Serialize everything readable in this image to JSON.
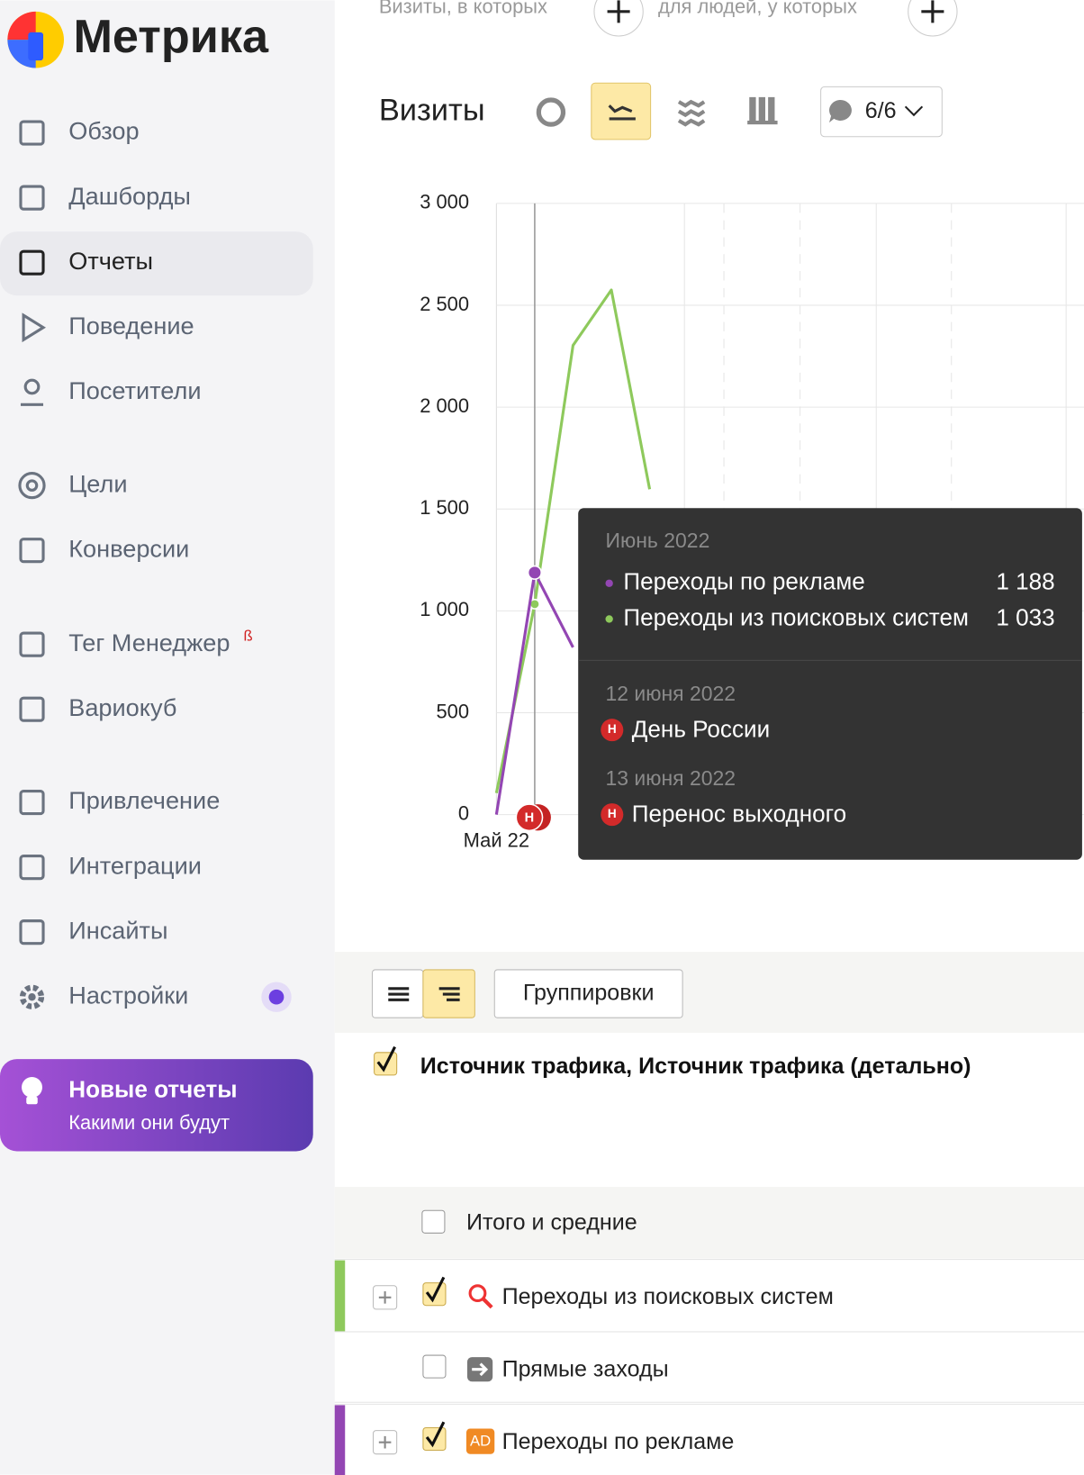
{
  "logo": "Метрика",
  "nav": [
    "Обзор",
    "Дашборды",
    "Отчеты",
    "Поведение",
    "Посетители",
    "Цели",
    "Конверсии",
    "Тег Менеджер",
    "Вариокуб",
    "Привлечение",
    "Интеграции",
    "Инсайты",
    "Настройки"
  ],
  "nav_badge": "ß",
  "promo": {
    "title": "Новые отчеты",
    "subtitle": "Какими они будут"
  },
  "filters": [
    "Визиты, в которых",
    "для людей, у которых"
  ],
  "toolbar": {
    "title": "Визиты",
    "notes": "6/6"
  },
  "chart_data": {
    "type": "line",
    "categories": [
      "Май 22",
      null,
      null,
      null,
      null
    ],
    "series": [
      {
        "name": "Переходы по рекламе",
        "color": "#9346b3",
        "values": [
          0,
          1188,
          821,
          null,
          null
        ]
      },
      {
        "name": "Переходы из поисковых систем",
        "color": "#8ec95c",
        "values": [
          106,
          1033,
          2303,
          2575,
          1597
        ]
      }
    ],
    "ylim": [
      0,
      3000
    ],
    "yticks": [
      0,
      500,
      {
        "value": 1000,
        "label": "1 000"
      },
      {
        "value": 1500,
        "label": "1 500"
      },
      {
        "value": 2000,
        "label": "2 000"
      },
      {
        "value": 2500,
        "label": "2 500"
      },
      {
        "value": 3000,
        "label": "3 000"
      }
    ],
    "grid": true
  },
  "tooltip": {
    "title": "Июнь 2022",
    "values": [
      "1 188",
      "1 033"
    ],
    "events": [
      {
        "date": "12 июня 2022",
        "name": "День России"
      },
      {
        "date": "13 июня 2022",
        "name": "Перенос выходного"
      }
    ],
    "marker": "Н"
  },
  "table": {
    "button": "Группировки",
    "dimensions": "Источник трафика, Источник трафика (детально)",
    "total": "Итого и средние",
    "rows": [
      "Переходы из поисковых систем",
      "Прямые заходы",
      "Переходы по рекламе"
    ],
    "ad_icon": "AD"
  }
}
